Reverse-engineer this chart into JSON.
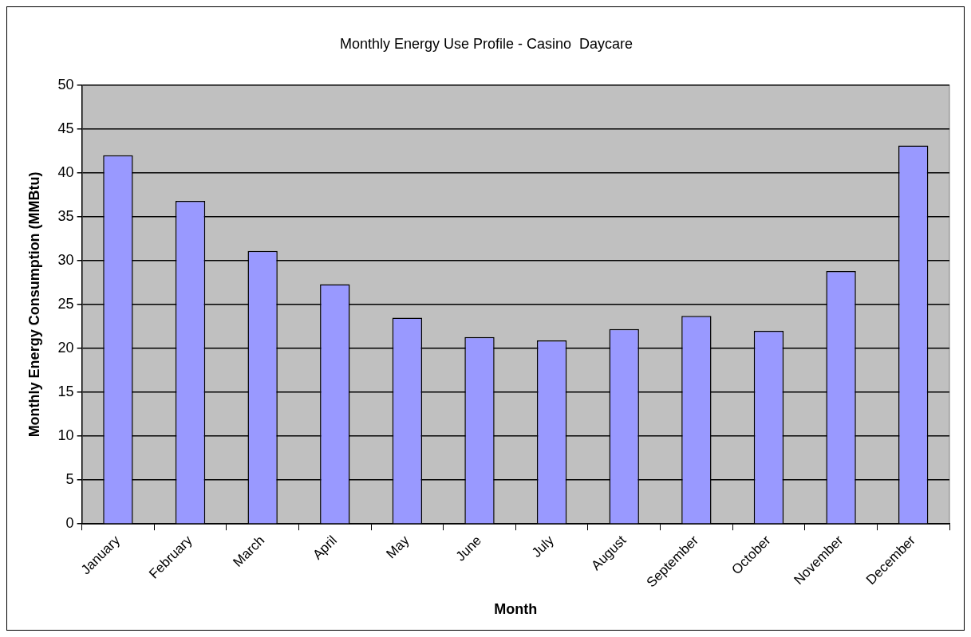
{
  "chart_data": {
    "type": "bar",
    "title": "Monthly Energy Use Profile - Casino  Daycare",
    "xlabel": "Month",
    "ylabel": "Monthly Energy Consumption (MMBtu)",
    "categories": [
      "January",
      "February",
      "March",
      "April",
      "May",
      "June",
      "July",
      "August",
      "September",
      "October",
      "November",
      "December"
    ],
    "values": [
      42.0,
      36.8,
      31.1,
      27.3,
      23.5,
      21.3,
      20.9,
      22.2,
      23.7,
      22.0,
      28.8,
      43.1
    ],
    "color": "#9999ff",
    "ylim": [
      0,
      50
    ],
    "yticks": [
      0,
      5,
      10,
      15,
      20,
      25,
      30,
      35,
      40,
      45,
      50
    ],
    "grid": "y",
    "legend": false
  }
}
